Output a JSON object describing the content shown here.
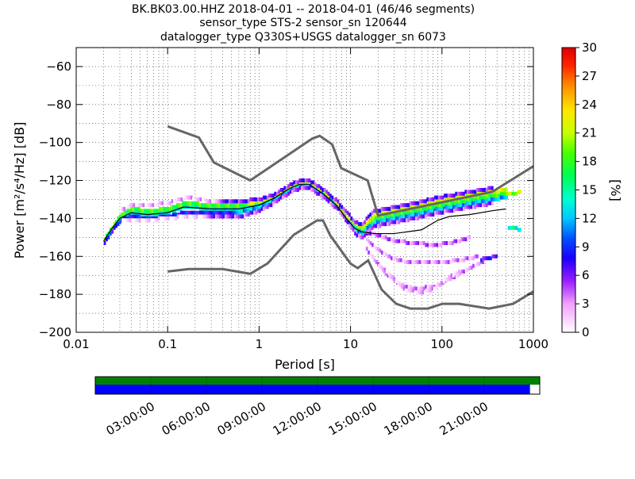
{
  "title_lines": [
    "BK.BK03.00.HHZ   2018-04-01 -- 2018-04-01  (46/46 segments)",
    "sensor_type STS-2 sensor_sn 120644",
    "datalogger_type Q330S+USGS datalogger_sn 6073"
  ],
  "colors": {
    "noise_model": "#666666",
    "mode_line": "#000000",
    "coverage_bar": "#0000ff",
    "data_bar": "#008000"
  },
  "chart_data": {
    "type": "heatmap",
    "title": "BK.BK03.00.HHZ   2018-04-01 -- 2018-04-01  (46/46 segments)",
    "xlabel": "Period [s]",
    "ylabel": "Power [m²/s⁴/Hz] [dB]",
    "xscale": "log",
    "xlim": [
      0.01,
      1000
    ],
    "ylim": [
      -200,
      -50
    ],
    "xticks": [
      {
        "value": 0.01,
        "label": "0.01"
      },
      {
        "value": 0.1,
        "label": "0.1"
      },
      {
        "value": 1,
        "label": "1"
      },
      {
        "value": 10,
        "label": "10"
      },
      {
        "value": 100,
        "label": "100"
      },
      {
        "value": 1000,
        "label": "1000"
      }
    ],
    "yticks": [
      {
        "value": -60,
        "label": "−60"
      },
      {
        "value": -80,
        "label": "−80"
      },
      {
        "value": -100,
        "label": "−100"
      },
      {
        "value": -120,
        "label": "−120"
      },
      {
        "value": -140,
        "label": "−140"
      },
      {
        "value": -160,
        "label": "−160"
      },
      {
        "value": -180,
        "label": "−180"
      },
      {
        "value": -200,
        "label": "−200"
      }
    ],
    "grid": true,
    "colorbar": {
      "label": "[%]",
      "range": [
        0,
        30
      ],
      "ticks": [
        {
          "value": 0,
          "label": "0"
        },
        {
          "value": 3,
          "label": "3"
        },
        {
          "value": 6,
          "label": "6"
        },
        {
          "value": 9,
          "label": "9"
        },
        {
          "value": 12,
          "label": "12"
        },
        {
          "value": 15,
          "label": "15"
        },
        {
          "value": 18,
          "label": "18"
        },
        {
          "value": 21,
          "label": "21"
        },
        {
          "value": 24,
          "label": "24"
        },
        {
          "value": 27,
          "label": "27"
        },
        {
          "value": 30,
          "label": "30"
        }
      ]
    },
    "noise_models": {
      "high": {
        "periods": [
          0.1,
          0.22,
          0.32,
          0.8,
          3.8,
          4.6,
          6.3,
          7.9,
          15.4,
          20,
          354.8,
          1000
        ],
        "db": [
          -91.5,
          -97.4,
          -110.5,
          -120,
          -98,
          -96.5,
          -101,
          -113.5,
          -120,
          -138.5,
          -126,
          -112.5
        ]
      },
      "low": {
        "periods": [
          0.1,
          0.17,
          0.4,
          0.8,
          1.24,
          2.4,
          4.3,
          5,
          6,
          10,
          12,
          15.6,
          21.9,
          31.6,
          45,
          70,
          101,
          154,
          328,
          600,
          1000
        ],
        "db": [
          -168,
          -166.7,
          -166.7,
          -169.2,
          -163.7,
          -148.6,
          -141.1,
          -141.1,
          -149,
          -163.8,
          -166.2,
          -162.1,
          -177.5,
          -185,
          -187.5,
          -187.5,
          -185,
          -185,
          -187.5,
          -185,
          -178.5
        ]
      }
    },
    "mode_line": {
      "periods": [
        0.02,
        0.024,
        0.03,
        0.04,
        0.06,
        0.1,
        0.15,
        0.3,
        0.6,
        1,
        1.5,
        2.2,
        2.8,
        3.5,
        5,
        7,
        9,
        11,
        13,
        18,
        30,
        60,
        90,
        120,
        200,
        350,
        500
      ],
      "db": [
        -152,
        -146,
        -140,
        -137,
        -138,
        -137,
        -134,
        -135,
        -135,
        -133,
        -129,
        -124,
        -122,
        -122,
        -127,
        -133,
        -140,
        -145,
        -147,
        -148,
        -148,
        -146,
        -141,
        -139,
        -138,
        -136,
        -135
      ]
    },
    "density": [
      {
        "periods": [
          0.02,
          0.024,
          0.03,
          0.04,
          0.06,
          0.1,
          0.15,
          0.3,
          0.6,
          1,
          1.5,
          2.2,
          2.8,
          3.5,
          5,
          7,
          9,
          11,
          13,
          18,
          30,
          60,
          90,
          120,
          200,
          350,
          500
        ],
        "db": [
          -152,
          -146,
          -140,
          -137,
          -138,
          -137,
          -134,
          -135,
          -135,
          -133,
          -129,
          -124,
          -122,
          -122,
          -127,
          -133,
          -140,
          -145,
          -147,
          -140,
          -138,
          -135,
          -133,
          -132,
          -130,
          -128,
          -127
        ],
        "pct": 18
      },
      {
        "periods": [
          0.02,
          0.024,
          0.03,
          0.04,
          0.06,
          0.1,
          0.15,
          0.3,
          0.6,
          1,
          1.5,
          2.2,
          2.8,
          3.5,
          5,
          7,
          9,
          11,
          13,
          18,
          30,
          60,
          90,
          120,
          200,
          350,
          500
        ],
        "db": [
          -151,
          -145,
          -138,
          -135,
          -136,
          -135,
          -132,
          -133,
          -133,
          -131,
          -128,
          -123,
          -121,
          -121,
          -126,
          -132,
          -139,
          -143,
          -145,
          -138,
          -136,
          -133,
          -131,
          -130,
          -128,
          -126,
          -125
        ],
        "pct": 22
      },
      {
        "periods": [
          0.02,
          0.024,
          0.03,
          0.04,
          0.06,
          0.1,
          0.15,
          0.3,
          0.6,
          1,
          1.5,
          2.2,
          2.8,
          3.5,
          5,
          7,
          9,
          11,
          13,
          18,
          30,
          60,
          90,
          120,
          200,
          350,
          500
        ],
        "db": [
          -153,
          -147,
          -141,
          -139,
          -140,
          -139,
          -137,
          -137,
          -137,
          -134,
          -130,
          -125,
          -123,
          -123,
          -128,
          -134,
          -141,
          -146,
          -148,
          -142,
          -140,
          -137,
          -135,
          -134,
          -132,
          -130,
          -129
        ],
        "pct": 12
      },
      {
        "periods": [
          0.03,
          0.04,
          0.06,
          0.1,
          0.15,
          0.3,
          0.6,
          1,
          1.5,
          2.2,
          2.8,
          3.5,
          5,
          7,
          9,
          11,
          13,
          18,
          30,
          60,
          90,
          120,
          200,
          350
        ],
        "db": [
          -136,
          -133,
          -133,
          -132,
          -129,
          -131,
          -131,
          -130,
          -127,
          -122,
          -120,
          -120,
          -125,
          -131,
          -137,
          -142,
          -143,
          -136,
          -134,
          -131,
          -129,
          -128,
          -126,
          -124
        ],
        "pct": 6
      },
      {
        "periods": [
          0.03,
          0.04,
          0.06,
          0.1,
          0.15,
          0.3,
          0.6,
          1,
          1.5,
          2.2,
          2.8,
          3.5,
          5,
          7,
          9,
          11,
          13,
          18,
          30,
          60,
          90,
          120,
          200,
          350
        ],
        "db": [
          -141,
          -141,
          -141,
          -140,
          -139,
          -139,
          -139,
          -136,
          -131,
          -126,
          -124,
          -124,
          -129,
          -135,
          -142,
          -148,
          -150,
          -144,
          -142,
          -139,
          -137,
          -136,
          -134,
          -132
        ],
        "pct": 5
      },
      {
        "periods": [
          14,
          18,
          25,
          40,
          60,
          100,
          150,
          250
        ],
        "db": [
          -150,
          -155,
          -160,
          -163,
          -163,
          -163,
          -162,
          -160
        ],
        "pct": 3
      },
      {
        "periods": [
          14,
          18,
          25,
          35,
          50,
          80,
          120,
          200,
          300
        ],
        "db": [
          -155,
          -162,
          -170,
          -175,
          -177,
          -176,
          -172,
          -166,
          -162
        ],
        "pct": 3
      },
      {
        "periods": [
          20,
          30,
          40,
          60,
          80,
          110,
          150
        ],
        "db": [
          -165,
          -172,
          -178,
          -179,
          -177,
          -172,
          -168
        ],
        "pct": 2
      },
      {
        "periods": [
          14,
          20,
          30,
          50,
          80,
          120,
          200
        ],
        "db": [
          -147,
          -149,
          -152,
          -153,
          -154,
          -153,
          -150
        ],
        "pct": 4
      },
      {
        "periods": [
          250,
          300,
          400
        ],
        "db": [
          -162,
          -161,
          -160
        ],
        "pct": 7
      },
      {
        "periods": [
          500,
          600,
          700
        ],
        "db": [
          -145,
          -145,
          -146
        ],
        "pct": 14
      },
      {
        "periods": [
          500,
          600,
          700
        ],
        "db": [
          -127,
          -127,
          -126
        ],
        "pct": 20
      }
    ]
  },
  "timeline": {
    "labels": [
      "03:00:00",
      "06:00:00",
      "09:00:00",
      "12:00:00",
      "15:00:00",
      "18:00:00",
      "21:00:00"
    ],
    "hours": [
      3,
      6,
      9,
      12,
      15,
      18,
      21
    ],
    "data_fraction": 1.0,
    "coverage_fraction": 0.978
  }
}
